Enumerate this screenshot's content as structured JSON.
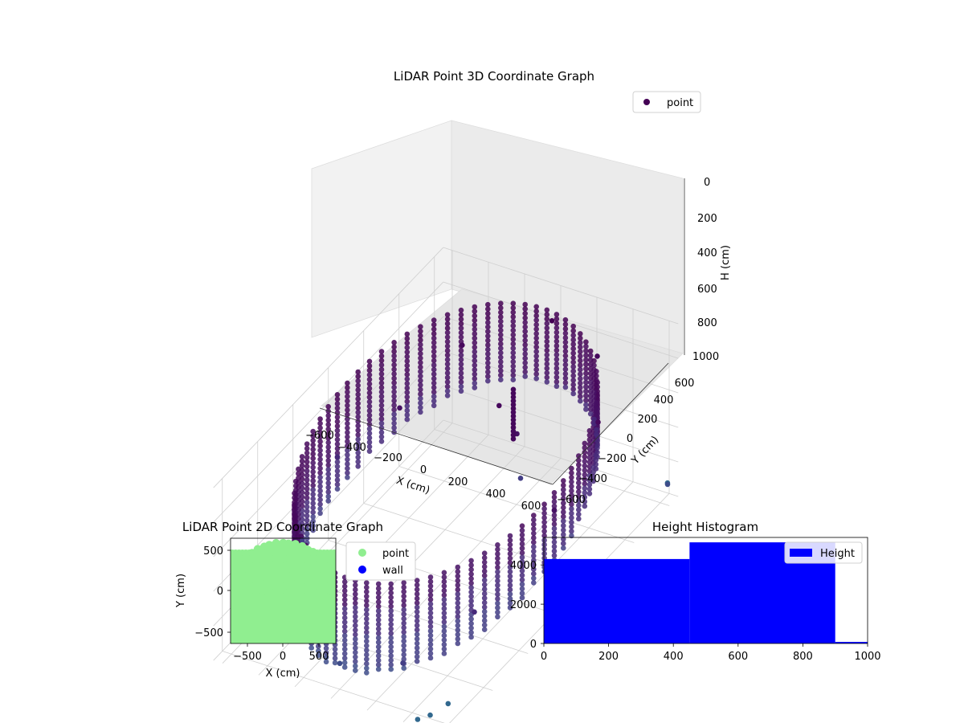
{
  "chart_data": [
    {
      "type": "scatter",
      "projection": "3d",
      "title": "LiDAR Point 3D Coordinate Graph",
      "xlabel": "X (cm)",
      "ylabel": "Y (cm)",
      "zlabel": "H (cm)",
      "xlim": [
        -650,
        650
      ],
      "ylim": [
        -650,
        650
      ],
      "zlim": [
        0,
        1000
      ],
      "z_inverted": true,
      "xticks": [
        "−600",
        "−400",
        "−200",
        "0",
        "200",
        "400",
        "600"
      ],
      "yticks": [
        "−600",
        "−400",
        "−200",
        "0",
        "200",
        "400",
        "600"
      ],
      "zticks": [
        "0",
        "200",
        "400",
        "600",
        "800",
        "1000"
      ],
      "legend": [
        "point"
      ],
      "legend_position": "upper-right",
      "colormap": "viridis",
      "description_series": {
        "name": "point",
        "structure": "ring-shaped wall of points around origin, radius ~600 cm, heights 100-900 cm, plus scattered outliers",
        "points": [
          [
            -600,
            0,
            500
          ],
          [
            -500,
            250,
            450
          ],
          [
            -350,
            450,
            250
          ],
          [
            0,
            600,
            150
          ],
          [
            300,
            550,
            200
          ],
          [
            500,
            350,
            300
          ],
          [
            600,
            0,
            400
          ],
          [
            500,
            -350,
            650
          ],
          [
            300,
            -550,
            800
          ],
          [
            0,
            -600,
            850
          ],
          [
            -300,
            -550,
            850
          ],
          [
            -550,
            -250,
            700
          ],
          [
            50,
            250,
            250
          ],
          [
            100,
            300,
            450
          ],
          [
            120,
            300,
            700
          ],
          [
            550,
            -550,
            950
          ],
          [
            500,
            -600,
            980
          ],
          [
            450,
            -620,
            1000
          ],
          [
            620,
            620,
            900
          ],
          [
            640,
            600,
            880
          ]
        ]
      }
    },
    {
      "type": "scatter",
      "title": "LiDAR Point 2D Coordinate Graph",
      "xlabel": "X (cm)",
      "ylabel": "Y (cm)",
      "xlim": [
        -620,
        620
      ],
      "ylim": [
        -620,
        620
      ],
      "xticks": [
        "−500",
        "0",
        "500"
      ],
      "yticks": [
        "−500",
        "0",
        "500"
      ],
      "legend": [
        {
          "name": "point",
          "color": "#90ee90"
        },
        {
          "name": "wall",
          "color": "#0000ff"
        }
      ],
      "legend_position": "outside-right",
      "series": [
        {
          "name": "point",
          "color": "#90ee90",
          "description": "dense filled disk of points covering the axes"
        },
        {
          "name": "wall",
          "color": "#0000ff",
          "points": []
        }
      ]
    },
    {
      "type": "bar",
      "subtype": "histogram",
      "title": "Height Histogram",
      "xlim": [
        0,
        1000
      ],
      "ylim": [
        0,
        5400
      ],
      "xticks": [
        "0",
        "200",
        "400",
        "600",
        "800",
        "1000"
      ],
      "yticks": [
        "0",
        "2000",
        "4000"
      ],
      "legend": [
        "Height"
      ],
      "legend_position": "upper-right",
      "bar_color": "#0000ff",
      "bins": [
        {
          "x0": 0,
          "x1": 450,
          "count": 4300
        },
        {
          "x0": 450,
          "x1": 900,
          "count": 5150
        },
        {
          "x0": 900,
          "x1": 1000,
          "count": 80
        }
      ]
    }
  ]
}
